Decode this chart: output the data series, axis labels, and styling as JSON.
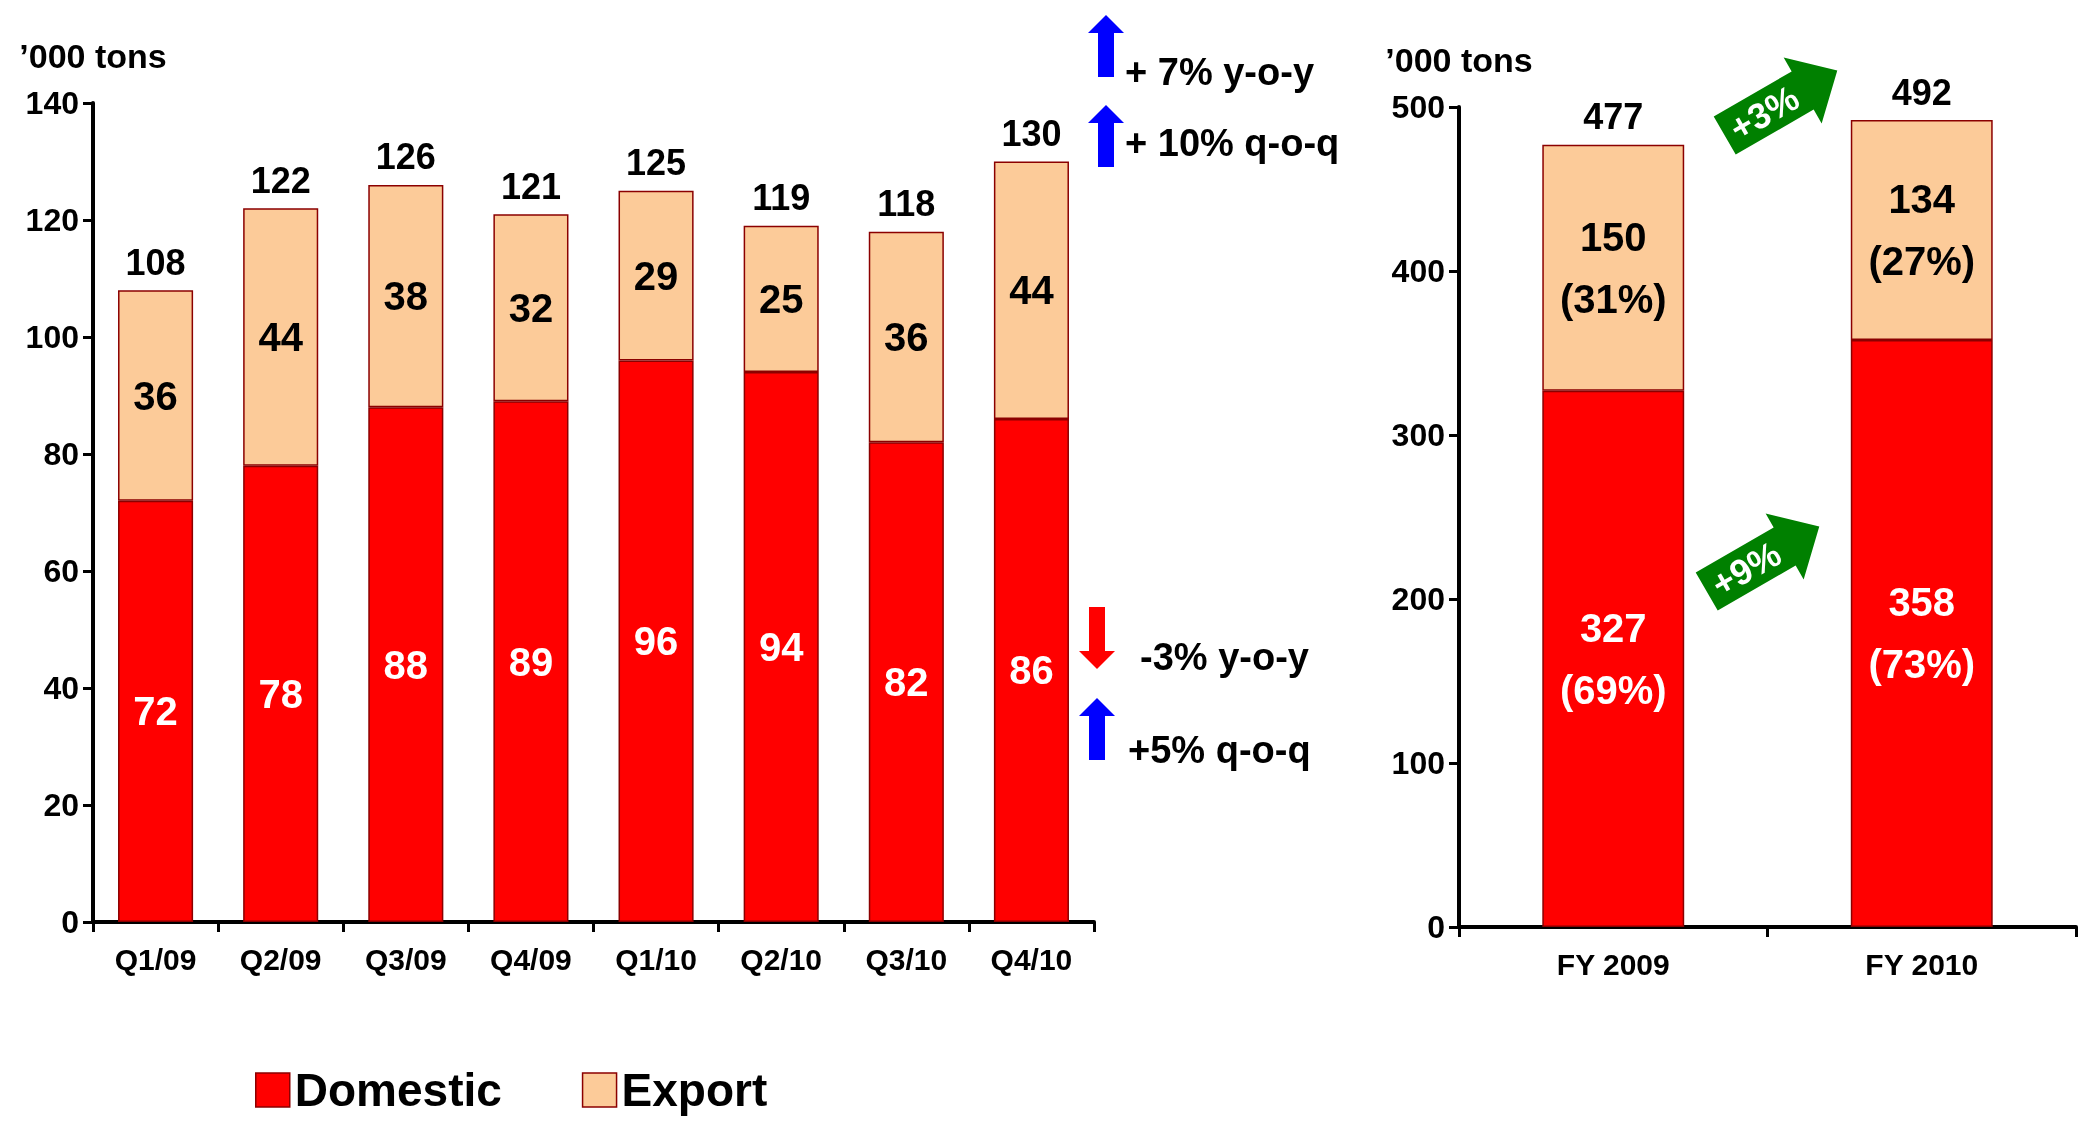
{
  "chart_data": [
    {
      "type": "bar",
      "ylabel": "’000 tons",
      "categories": [
        "Q1/09",
        "Q2/09",
        "Q3/09",
        "Q4/09",
        "Q1/10",
        "Q2/10",
        "Q3/10",
        "Q4/10"
      ],
      "stacked": true,
      "series": [
        {
          "name": "Domestic",
          "color": "#ff0000",
          "values": [
            72,
            78,
            88,
            89,
            96,
            94,
            82,
            86
          ]
        },
        {
          "name": "Export",
          "color": "#fccb99",
          "values": [
            36,
            44,
            38,
            32,
            29,
            25,
            36,
            44
          ]
        }
      ],
      "data_labels": true,
      "totals": [
        "108",
        "122",
        "126",
        "121",
        "125",
        "119",
        "118",
        "130"
      ],
      "ylim": [
        0,
        140
      ],
      "yticks": [
        0,
        20,
        40,
        60,
        80,
        100,
        120,
        140
      ],
      "legend": "bottom",
      "annotations": [
        "+ 7% y-o-y",
        "+ 10% q-o-q",
        "-3% y-o-y",
        "+5% q-o-q"
      ]
    },
    {
      "type": "bar",
      "ylabel": "’000 tons",
      "categories": [
        "FY 2009",
        "FY 2010"
      ],
      "stacked": true,
      "series": [
        {
          "color": "#ff0000",
          "values": [
            327,
            358
          ],
          "value_labels": [
            "327\n(69%)",
            "358\n(73%)"
          ]
        },
        {
          "color": "#fccb99",
          "values": [
            150,
            134
          ],
          "value_labels": [
            "150\n(31%)",
            "134\n(27%)"
          ]
        }
      ],
      "totals": [
        "477",
        "492"
      ],
      "ylim": [
        0,
        500
      ],
      "yticks": [
        0,
        100,
        200,
        300,
        400,
        500
      ],
      "annotations": [
        "+3%",
        "+9%"
      ]
    }
  ]
}
